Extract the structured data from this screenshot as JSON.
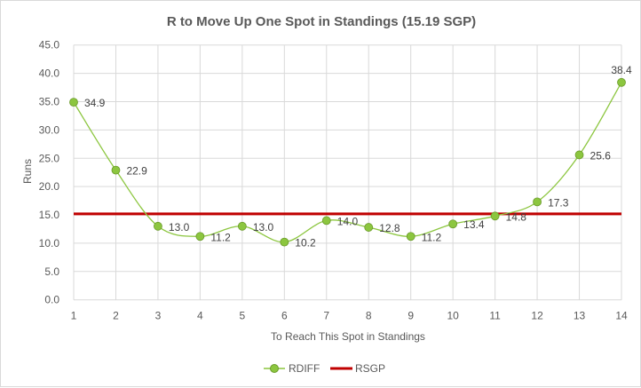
{
  "chart_data": {
    "type": "line",
    "title": "R to Move Up One Spot in Standings (15.19 SGP)",
    "xlabel": "To Reach This Spot in Standings",
    "ylabel": "Runs",
    "x": [
      1,
      2,
      3,
      4,
      5,
      6,
      7,
      8,
      9,
      10,
      11,
      12,
      13,
      14
    ],
    "ylim": [
      0,
      45
    ],
    "yticks": [
      "0.0",
      "5.0",
      "10.0",
      "15.0",
      "20.0",
      "25.0",
      "30.0",
      "35.0",
      "40.0",
      "45.0"
    ],
    "grid": true,
    "legend_position": "bottom",
    "series": [
      {
        "name": "RDIFF",
        "color": "#8cc63f",
        "style": "smooth line with markers",
        "values": [
          34.9,
          22.9,
          13.0,
          11.2,
          13.0,
          10.2,
          14.0,
          12.8,
          11.2,
          13.4,
          14.8,
          17.3,
          25.6,
          38.4
        ],
        "labels": [
          "34.9",
          "22.9",
          "13.0",
          "11.2",
          "13.0",
          "10.2",
          "14.0",
          "12.8",
          "11.2",
          "13.4",
          "14.8",
          "17.3",
          "25.6",
          "38.4"
        ]
      },
      {
        "name": "RSGP",
        "color": "#c00000",
        "style": "horizontal line",
        "value": 15.19
      }
    ]
  }
}
